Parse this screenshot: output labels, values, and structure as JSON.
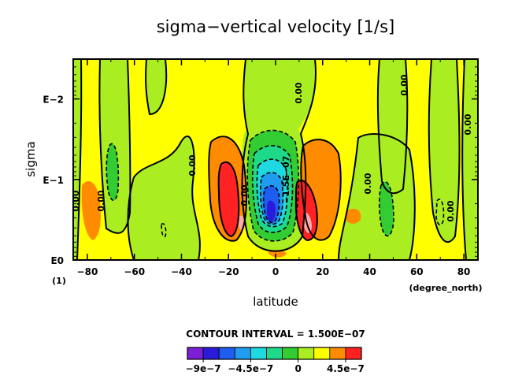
{
  "chart_data": {
    "type": "heatmap",
    "title": "sigma−vertical velocity [1/s]",
    "xlabel": "latitude",
    "ylabel": "sigma",
    "x_unit": "(degree_north)",
    "y_unit": "(1)",
    "xlim": [
      -86,
      86
    ],
    "ylim": [
      1,
      0.0032
    ],
    "yscale": "log",
    "x_ticks": [
      -80,
      -60,
      -40,
      -20,
      0,
      20,
      40,
      60,
      80
    ],
    "x_tick_labels": [
      "−80",
      "−60",
      "−40",
      "−20",
      "0",
      "20",
      "40",
      "60",
      "80"
    ],
    "y_ticks": [
      1,
      0.1,
      0.01
    ],
    "y_tick_labels": [
      "E0",
      "E−1",
      "E−2"
    ],
    "contour_interval_text": "CONTOUR INTERVAL = 1.500E−07",
    "contour_interval": 1.5e-07,
    "contour_labels": [
      "0.00",
      "0.00",
      "0.00",
      "0.00",
      "−1.5E−07",
      "0.00",
      "0.00",
      "0.00",
      "0.00",
      "0.00"
    ],
    "colorbar": {
      "levels": [
        -1.05e-06,
        -9e-07,
        -7.5e-07,
        -6e-07,
        -4.5e-07,
        -3e-07,
        -1.5e-07,
        0,
        1.5e-07,
        3e-07,
        4.5e-07,
        6e-07
      ],
      "colors": [
        "#7a1fd6",
        "#2a1ad9",
        "#1f5cf0",
        "#1f9cf0",
        "#1fd9e0",
        "#1fd98a",
        "#33cc33",
        "#aaee22",
        "#ffff00",
        "#ff8c00",
        "#ff2222",
        "#ffaaaa"
      ],
      "tick_values": [
        -9e-07,
        -4.5e-07,
        0,
        4.5e-07
      ],
      "tick_labels": [
        "−9e−7",
        "−4.5e−7",
        "0",
        "4.5e−7"
      ]
    },
    "features": [
      {
        "kind": "max",
        "lat": -15,
        "sigma": 0.4,
        "value": 6e-07
      },
      {
        "kind": "min",
        "lat": 0,
        "sigma": 0.4,
        "value": -1e-06
      },
      {
        "kind": "max",
        "lat": 14,
        "sigma": 0.45,
        "value": 6.5e-07
      },
      {
        "kind": "max",
        "lat": -80,
        "sigma": 0.4,
        "value": 2e-07
      },
      {
        "kind": "min",
        "lat": -68,
        "sigma": 0.15,
        "value": -2e-07
      }
    ]
  }
}
